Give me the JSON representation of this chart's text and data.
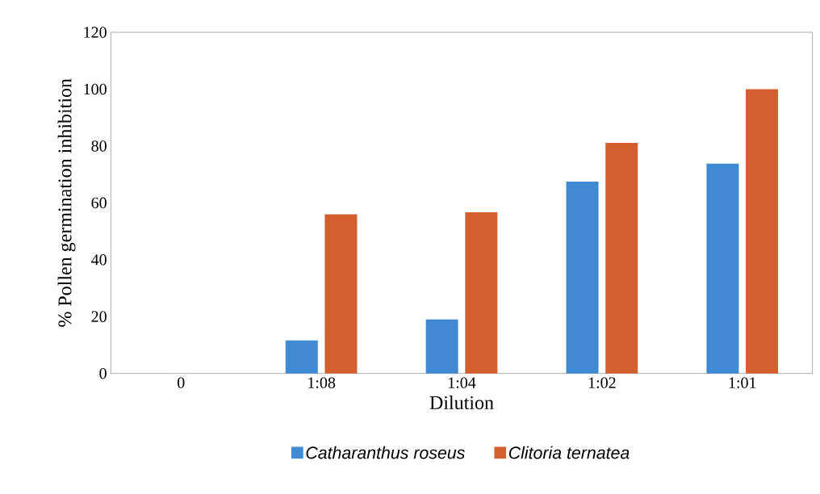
{
  "chart_data": {
    "type": "bar",
    "xlabel": "Dilution",
    "ylabel": "% Pollen germination inhibition",
    "categories": [
      "0",
      "1:08",
      "1:04",
      "1:02",
      "1:01"
    ],
    "series": [
      {
        "name": "Catharanthus roseus",
        "color": "#3f8ad2",
        "values": [
          0,
          11.6,
          19,
          67.5,
          73.8
        ]
      },
      {
        "name": "Clitoria ternatea",
        "color": "#d45f2e",
        "values": [
          0,
          56,
          56.7,
          81.1,
          100
        ]
      }
    ],
    "ylim": [
      0,
      120
    ],
    "yticks": [
      0,
      20,
      40,
      60,
      80,
      100,
      120
    ],
    "grid": false,
    "legend": "bottom"
  }
}
